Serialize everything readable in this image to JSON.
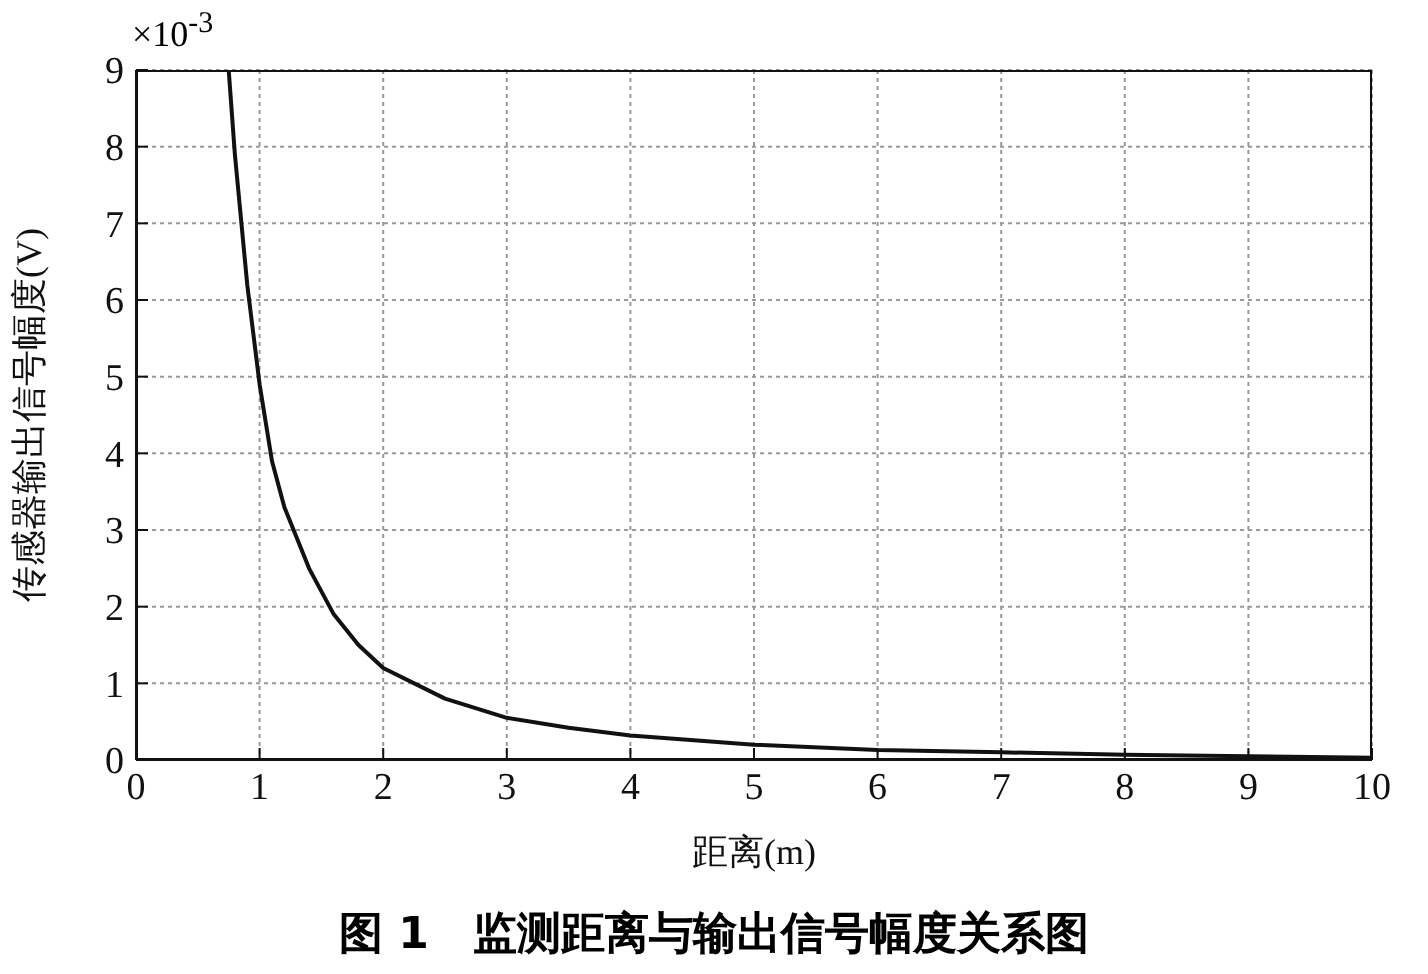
{
  "chart_data": {
    "type": "line",
    "xlabel": "距离(m)",
    "ylabel": "传感器输出信号幅度(V)",
    "annotations": [
      "×10$^{-3}$",
      "图 1　监测距离与输出信号幅度关系图"
    ],
    "x": [
      0.75,
      0.8,
      0.9,
      1.0,
      1.1,
      1.2,
      1.4,
      1.6,
      1.8,
      2.0,
      2.5,
      3.0,
      3.5,
      4.0,
      5.0,
      6.0,
      7.0,
      8.0,
      9.0,
      10.0
    ],
    "series": [
      {
        "color": "#111111",
        "values": [
          9,
          7.9,
          6.2,
          4.9,
          3.9,
          3.3,
          2.5,
          1.9,
          1.5,
          1.2,
          0.8,
          0.55,
          0.42,
          0.32,
          0.2,
          0.13,
          0.1,
          0.07,
          0.05,
          0.03
        ]
      }
    ],
    "xlim": [
      0,
      10
    ],
    "xticks": [
      0,
      1,
      2,
      3,
      4,
      5,
      6,
      7,
      8,
      9,
      10
    ],
    "ylim": [
      0,
      9
    ],
    "yticks": [
      0,
      1,
      2,
      3,
      4,
      5,
      6,
      7,
      8,
      9
    ],
    "grid": true,
    "line_style": "solid",
    "marker": "none",
    "legend": false
  }
}
